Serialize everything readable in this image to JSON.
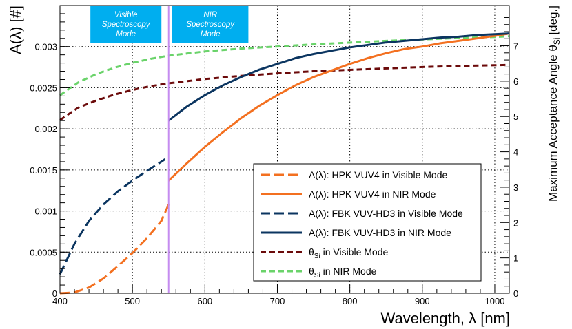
{
  "chart_data": {
    "type": "line",
    "xlabel": "Wavelength, λ [nm]",
    "ylabel": "A(λ) [#]",
    "y2label": "Maximum Acceptance Angle θ",
    "y2label_sub": "Si",
    "y2label_unit": "[deg.]",
    "xlim": [
      400,
      1020
    ],
    "ylim": [
      0,
      0.0035
    ],
    "y2lim": [
      0,
      8.14
    ],
    "grid": true,
    "x_ticks": [
      400,
      500,
      600,
      700,
      800,
      900,
      1000
    ],
    "y_ticks": [
      {
        "v": 0,
        "label": "0"
      },
      {
        "v": 0.0005,
        "label": "0.0005"
      },
      {
        "v": 0.001,
        "label": "0.001"
      },
      {
        "v": 0.0015,
        "label": "0.0015"
      },
      {
        "v": 0.002,
        "label": "0.002"
      },
      {
        "v": 0.0025,
        "label": "0.0025"
      },
      {
        "v": 0.003,
        "label": "0.003"
      }
    ],
    "y2_ticks": [
      0,
      1,
      2,
      3,
      4,
      5,
      6,
      7
    ],
    "mode_boundary": 550,
    "mode_boxes": [
      {
        "label_lines": [
          "Visible",
          "Spectroscopy",
          "Mode"
        ],
        "x0": 442,
        "x1": 540,
        "color": "#00aeef"
      },
      {
        "label_lines": [
          "NIR",
          "Spectroscopy",
          "Mode"
        ],
        "x0": 555,
        "x1": 660,
        "color": "#00aeef"
      }
    ],
    "legend_position": "lower-right",
    "series": [
      {
        "name_prefix": "A(λ): ",
        "name": "HPK VUV4 in Visible Mode",
        "name_sub": "",
        "name_suffix": "",
        "color": "#f37020",
        "dash": "dashed",
        "axis": "left",
        "x": [
          400,
          420,
          440,
          460,
          480,
          500,
          520,
          540,
          550
        ],
        "y": [
          0.0,
          1e-05,
          7e-05,
          0.00018,
          0.00033,
          0.00049,
          0.00067,
          0.00088,
          0.00108
        ]
      },
      {
        "name_prefix": "A(λ): ",
        "name": "HPK VUV4 in NIR Mode",
        "name_sub": "",
        "name_suffix": "",
        "color": "#f37020",
        "dash": "solid",
        "axis": "left",
        "x": [
          550,
          575,
          600,
          625,
          650,
          675,
          700,
          725,
          750,
          775,
          800,
          825,
          850,
          875,
          900,
          925,
          950,
          975,
          1000,
          1020
        ],
        "y": [
          0.00137,
          0.00158,
          0.00178,
          0.00196,
          0.00213,
          0.00228,
          0.00241,
          0.00253,
          0.00263,
          0.00271,
          0.00279,
          0.00286,
          0.00292,
          0.00297,
          0.003,
          0.00304,
          0.00307,
          0.0031,
          0.00313,
          0.00316
        ]
      },
      {
        "name_prefix": "A(λ): ",
        "name": "FBK VUV-HD3 in Visible Mode",
        "name_sub": "",
        "name_suffix": "",
        "color": "#0b3560",
        "dash": "dashed",
        "axis": "left",
        "x": [
          400,
          420,
          440,
          460,
          480,
          500,
          520,
          540,
          545
        ],
        "y": [
          0.00023,
          0.0006,
          0.00088,
          0.00108,
          0.00124,
          0.00137,
          0.00149,
          0.0016,
          0.00163
        ]
      },
      {
        "name_prefix": "A(λ): ",
        "name": "FBK VUV-HD3 in NIR Mode",
        "name_sub": "",
        "name_suffix": "",
        "color": "#0b3560",
        "dash": "solid",
        "axis": "left",
        "x": [
          550,
          575,
          600,
          625,
          650,
          675,
          700,
          725,
          750,
          775,
          800,
          825,
          850,
          875,
          900,
          925,
          950,
          975,
          1000,
          1020
        ],
        "y": [
          0.0021,
          0.00227,
          0.00241,
          0.00253,
          0.00263,
          0.00272,
          0.00279,
          0.00286,
          0.00291,
          0.00295,
          0.00299,
          0.00302,
          0.00305,
          0.00307,
          0.00309,
          0.00311,
          0.00312,
          0.00314,
          0.00315,
          0.00316
        ]
      },
      {
        "name_prefix": "",
        "name": "θ",
        "name_sub": "Si",
        "name_suffix": " in Visible Mode",
        "color": "#6b0a0a",
        "dash": "dashed",
        "axis": "right",
        "x": [
          400,
          425,
          450,
          475,
          500,
          525,
          550,
          575,
          600,
          650,
          700,
          750,
          800,
          850,
          900,
          950,
          1000,
          1020
        ],
        "y": [
          4.9,
          5.25,
          5.45,
          5.62,
          5.75,
          5.86,
          5.94,
          6.0,
          6.06,
          6.15,
          6.22,
          6.28,
          6.32,
          6.36,
          6.4,
          6.43,
          6.45,
          6.46
        ]
      },
      {
        "name_prefix": "",
        "name": "θ",
        "name_sub": "Si",
        "name_suffix": " in NIR Mode",
        "color": "#6ad36a",
        "dash": "dashed",
        "axis": "right",
        "x": [
          400,
          425,
          450,
          475,
          500,
          525,
          550,
          575,
          600,
          650,
          700,
          750,
          800,
          850,
          900,
          950,
          1000,
          1020
        ],
        "y": [
          5.6,
          5.96,
          6.2,
          6.38,
          6.52,
          6.63,
          6.72,
          6.78,
          6.84,
          6.92,
          6.98,
          7.04,
          7.09,
          7.14,
          7.18,
          7.22,
          7.25,
          7.27
        ]
      }
    ]
  }
}
